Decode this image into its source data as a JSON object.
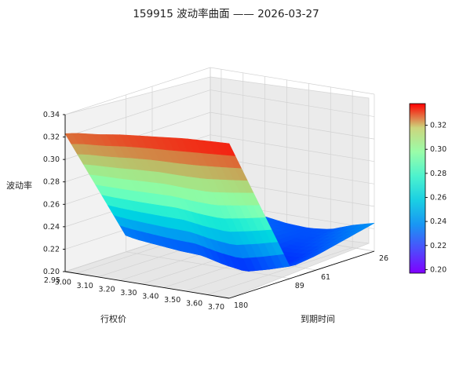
{
  "chart_data": {
    "type": "surface3d",
    "title": "159915 波动率曲面 —— 2026-03-27",
    "xlabel": "行权价",
    "ylabel": "到期时间",
    "zlabel": "波动率",
    "x_ticks": [
      "2.95",
      "3.00",
      "3.10",
      "3.20",
      "3.30",
      "3.40",
      "3.50",
      "3.60",
      "3.70"
    ],
    "y_ticks": [
      "26",
      "61",
      "89",
      "180"
    ],
    "z_ticks": [
      "0.20",
      "0.22",
      "0.24",
      "0.26",
      "0.28",
      "0.30",
      "0.32",
      "0.34"
    ],
    "colorbar_ticks": [
      "0.20",
      "0.22",
      "0.24",
      "0.26",
      "0.28",
      "0.30",
      "0.32"
    ],
    "zlim": [
      0.2,
      0.34
    ],
    "colorbar_range": [
      0.197,
      0.338
    ],
    "colormap": "rainbow",
    "grid": true,
    "strikes": [
      2.95,
      3.0,
      3.1,
      3.2,
      3.3,
      3.4,
      3.5,
      3.6,
      3.7
    ],
    "expiries": [
      26,
      61,
      89,
      180
    ],
    "z_values": [
      [
        0.229,
        0.226,
        0.22,
        0.215,
        0.212,
        0.211,
        0.213,
        0.22,
        0.225
      ],
      [
        0.228,
        0.222,
        0.22,
        0.218,
        0.22,
        0.213,
        0.206,
        0.206,
        0.213
      ],
      [
        0.214,
        0.212,
        0.21,
        0.208,
        0.207,
        0.202,
        0.199,
        0.204,
        0.21
      ],
      [
        0.323,
        0.325,
        0.327,
        0.33,
        0.332,
        0.334,
        0.336,
        0.337,
        0.338
      ]
    ]
  }
}
